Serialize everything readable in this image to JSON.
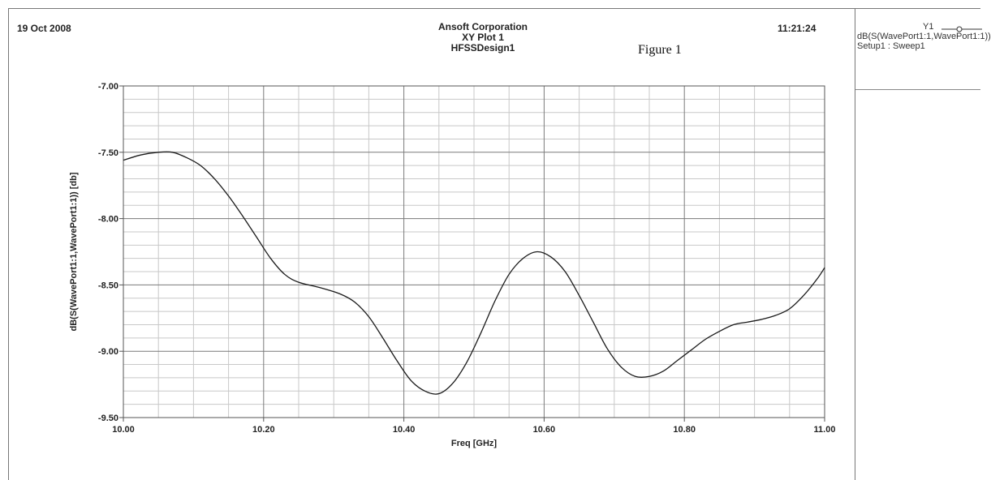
{
  "header": {
    "date": "19 Oct 2008",
    "time": "11:21:24",
    "company": "Ansoft Corporation",
    "plot_name": "XY Plot 1",
    "design": "HFSSDesign1",
    "figure_note": "Figure 1"
  },
  "legend": {
    "trace_name": "Y1",
    "expression": "dB(S(WavePort1:1,WavePort1:1))",
    "setup": "Setup1 : Sweep1"
  },
  "chart_data": {
    "type": "line",
    "title": "XY Plot 1",
    "xlabel": "Freq [GHz]",
    "ylabel": "dB(S(WavePort1:1,WavePort1:1)) [db]",
    "xlim": [
      10.0,
      11.0
    ],
    "ylim": [
      -9.5,
      -7.0
    ],
    "x_ticks": [
      "10.00",
      "10.20",
      "10.40",
      "10.60",
      "10.80",
      "11.00"
    ],
    "y_ticks": [
      "-7.00",
      "-7.50",
      "-8.00",
      "-8.50",
      "-9.00",
      "-9.50"
    ],
    "grid": true,
    "legend_position": "top-right",
    "line_color": "#1a1a1a",
    "series": [
      {
        "name": "dB(S(WavePort1:1,WavePort1:1))",
        "x": [
          10.0,
          10.025,
          10.05,
          10.07,
          10.09,
          10.11,
          10.13,
          10.15,
          10.17,
          10.19,
          10.21,
          10.23,
          10.25,
          10.28,
          10.31,
          10.33,
          10.35,
          10.37,
          10.39,
          10.41,
          10.43,
          10.45,
          10.47,
          10.49,
          10.51,
          10.53,
          10.55,
          10.57,
          10.59,
          10.61,
          10.63,
          10.65,
          10.67,
          10.69,
          10.71,
          10.73,
          10.75,
          10.77,
          10.79,
          10.81,
          10.83,
          10.85,
          10.87,
          10.89,
          10.91,
          10.93,
          10.95,
          10.97,
          10.99,
          11.0
        ],
        "y": [
          -7.56,
          -7.52,
          -7.5,
          -7.5,
          -7.54,
          -7.6,
          -7.7,
          -7.83,
          -7.98,
          -8.14,
          -8.3,
          -8.42,
          -8.48,
          -8.52,
          -8.57,
          -8.63,
          -8.74,
          -8.9,
          -9.07,
          -9.22,
          -9.3,
          -9.32,
          -9.24,
          -9.08,
          -8.86,
          -8.62,
          -8.42,
          -8.3,
          -8.25,
          -8.29,
          -8.4,
          -8.58,
          -8.78,
          -8.98,
          -9.12,
          -9.19,
          -9.19,
          -9.15,
          -9.07,
          -8.99,
          -8.91,
          -8.85,
          -8.8,
          -8.78,
          -8.76,
          -8.73,
          -8.68,
          -8.58,
          -8.45,
          -8.37
        ]
      }
    ]
  }
}
